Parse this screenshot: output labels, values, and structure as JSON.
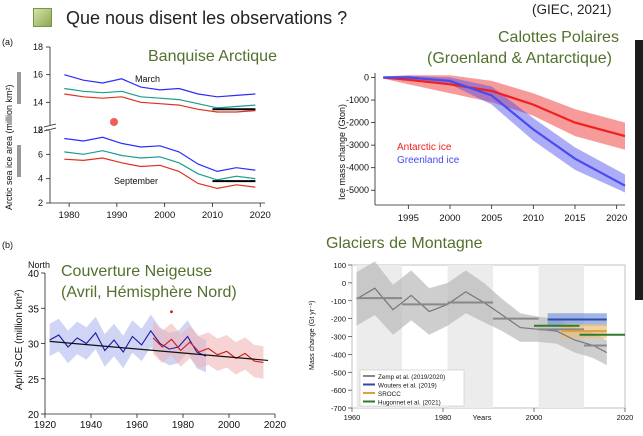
{
  "header": {
    "title": "Que nous disent les observations ?",
    "source": "(GIEC, 2021)",
    "colors": {
      "title_bullet": "#8aa852",
      "panel_titles": "#53702c"
    }
  },
  "panels": {
    "arctic": {
      "panel_label": "(a)",
      "title": "Banquise Arctique",
      "ylabel": "Arctic sea ice area (million km²)",
      "march_label": "March",
      "september_label": "September"
    },
    "ice_sheets": {
      "title_line1": "Calottes Polaires",
      "title_line2": "(Groenland & Antarctique)",
      "ylabel": "Ice mass change (Gton)",
      "legend_antarctic": "Antarctic ice",
      "legend_greenland": "Greenland ice"
    },
    "snow": {
      "panel_label": "(b)",
      "title_line1": "Couverture Neigeuse",
      "title_line2": "(Avril, Hémisphère Nord)",
      "corner_label": "North",
      "ylabel": "April SCE (million km²)"
    },
    "glaciers": {
      "title": "Glaciers de Montagne",
      "ylabel": "Mass change (Gt yr⁻¹)",
      "xlabel": "Years",
      "legend": [
        "Zemp et al. (2019/2020)",
        "Wouters et al. (2019)",
        "SROCC",
        "Hugonnet et al. (2021)"
      ]
    }
  },
  "chart_data": [
    {
      "id": "arctic",
      "type": "line",
      "xlim": [
        1976,
        2021
      ],
      "x_ticks": [
        1980,
        1990,
        2000,
        2010,
        2020
      ],
      "y_ticks_upper": [
        12,
        14,
        16,
        18
      ],
      "y_ticks_lower": [
        2,
        4,
        6,
        8
      ],
      "x": [
        1979,
        1983,
        1987,
        1991,
        1995,
        1999,
        2003,
        2007,
        2011,
        2015,
        2019
      ],
      "march_series": [
        {
          "color": "#2b2bff",
          "values": [
            16.0,
            15.6,
            15.4,
            15.7,
            15.1,
            14.9,
            15.0,
            14.6,
            14.4,
            14.5,
            14.6
          ]
        },
        {
          "color": "#1a9e8a",
          "values": [
            15.0,
            14.8,
            14.7,
            14.8,
            14.4,
            14.3,
            14.2,
            13.9,
            13.6,
            13.7,
            13.8
          ]
        },
        {
          "color": "#e03020",
          "values": [
            14.6,
            14.4,
            14.3,
            14.4,
            14.0,
            13.9,
            13.8,
            13.5,
            13.3,
            13.3,
            13.4
          ]
        }
      ],
      "september_series": [
        {
          "color": "#2b2bff",
          "values": [
            7.3,
            7.1,
            7.4,
            6.9,
            6.6,
            6.7,
            6.2,
            5.2,
            4.6,
            4.9,
            4.7
          ]
        },
        {
          "color": "#1a9e8a",
          "values": [
            6.2,
            6.0,
            6.3,
            5.9,
            5.7,
            5.8,
            5.3,
            4.4,
            3.9,
            4.2,
            4.0
          ]
        },
        {
          "color": "#e03020",
          "values": [
            5.6,
            5.5,
            5.7,
            5.3,
            5.0,
            5.1,
            4.6,
            3.6,
            3.2,
            3.5,
            3.3
          ]
        }
      ],
      "march_mean": {
        "x": [
          2010,
          2019
        ],
        "value": 13.5
      },
      "september_mean": {
        "x": [
          2010,
          2019
        ],
        "value": 3.8
      }
    },
    {
      "id": "ice_sheets",
      "type": "area",
      "xlim": [
        1991,
        2021
      ],
      "ylim": [
        -5300,
        200
      ],
      "x_ticks": [
        1995,
        2000,
        2005,
        2010,
        2015,
        2020
      ],
      "y_ticks": [
        0,
        -1000,
        -2000,
        -3000,
        -4000,
        -5000
      ],
      "series": [
        {
          "name": "Antarctic ice",
          "color": "#ee2020",
          "x": [
            1992,
            1995,
            2000,
            2005,
            2010,
            2015,
            2021
          ],
          "values": [
            0,
            -100,
            -300,
            -600,
            -1200,
            -2000,
            -2600
          ],
          "lower": [
            -50,
            -300,
            -700,
            -1100,
            -1700,
            -2600,
            -3200
          ],
          "upper": [
            50,
            100,
            100,
            -150,
            -700,
            -1400,
            -2000
          ]
        },
        {
          "name": "Greenland ice",
          "color": "#4a4aee",
          "x": [
            1992,
            1995,
            2000,
            2005,
            2010,
            2015,
            2021
          ],
          "values": [
            0,
            0,
            -150,
            -800,
            -2300,
            -3600,
            -4800
          ],
          "lower": [
            -50,
            -80,
            -300,
            -1200,
            -2800,
            -4100,
            -5100
          ],
          "upper": [
            50,
            80,
            0,
            -400,
            -1800,
            -3100,
            -4300
          ]
        }
      ]
    },
    {
      "id": "snow",
      "type": "line",
      "xlim": [
        1920,
        2020
      ],
      "ylim": [
        20,
        40
      ],
      "x_ticks": [
        1920,
        1940,
        1960,
        1980,
        2000,
        2020
      ],
      "y_ticks": [
        20,
        25,
        30,
        35,
        40
      ],
      "series": [
        {
          "color": "#1a1aa8",
          "band": "#a9b3ee",
          "x": [
            1922,
            1926,
            1930,
            1934,
            1938,
            1942,
            1946,
            1950,
            1954,
            1958,
            1962,
            1966,
            1970,
            1974,
            1978,
            1982,
            1986,
            1990
          ],
          "values": [
            30.5,
            31.2,
            29.5,
            30.8,
            30.0,
            31.5,
            29.0,
            30.5,
            28.8,
            31.0,
            29.8,
            31.8,
            30.0,
            29.2,
            29.5,
            31.0,
            28.8,
            28.2
          ]
        },
        {
          "color": "#cc1a1a",
          "band": "#f0b0b0",
          "x": [
            1967,
            1971,
            1975,
            1979,
            1983,
            1987,
            1991,
            1995,
            1999,
            2003,
            2007,
            2011,
            2015
          ],
          "values": [
            30.8,
            29.5,
            30.6,
            29.0,
            30.2,
            28.8,
            29.3,
            28.4,
            28.9,
            27.9,
            28.6,
            27.5,
            27.3
          ]
        }
      ],
      "trend": {
        "x": [
          1922,
          2017
        ],
        "values": [
          30.3,
          27.6
        ],
        "color": "#111111"
      },
      "extra_marker": {
        "x": 1975,
        "value": 34.5,
        "color": "#cc1a1a"
      }
    },
    {
      "id": "glaciers",
      "type": "line",
      "xlim": [
        1960,
        2020
      ],
      "ylim": [
        -700,
        100
      ],
      "x_ticks": [
        1960,
        1980,
        2000,
        2020
      ],
      "y_ticks": [
        100,
        0,
        -100,
        -200,
        -300,
        -400,
        -500,
        -600,
        -700
      ],
      "series": [
        {
          "name": "Zemp et al. (2019/2020)",
          "color": "#777777",
          "x": [
            1961,
            1965,
            1969,
            1973,
            1977,
            1981,
            1985,
            1989,
            1993,
            1997,
            2001,
            2005,
            2009,
            2013,
            2016
          ],
          "values": [
            -90,
            -30,
            -150,
            -70,
            -160,
            -120,
            -50,
            -110,
            -180,
            -250,
            -260,
            -270,
            -320,
            -350,
            -390
          ],
          "band": [
            150,
            150,
            140,
            140,
            130,
            120,
            120,
            110,
            90,
            80,
            70,
            70,
            70,
            70,
            70
          ]
        }
      ],
      "period_means": [
        {
          "name": "Zemp et al. (2019/2020)",
          "color": "#888888",
          "segments": [
            {
              "x": [
                1961,
                1971
              ],
              "value": -85
            },
            {
              "x": [
                1971,
                1981
              ],
              "value": -120
            },
            {
              "x": [
                1981,
                1991
              ],
              "value": -110
            },
            {
              "x": [
                1991,
                2001
              ],
              "value": -200
            },
            {
              "x": [
                2001,
                2011
              ],
              "value": -260
            },
            {
              "x": [
                2011,
                2016
              ],
              "value": -350
            }
          ]
        },
        {
          "name": "Wouters et al. (2019)",
          "color": "#2b4ea8",
          "segments": [
            {
              "x": [
                2003,
                2016
              ],
              "value": -205
            }
          ]
        },
        {
          "name": "SROCC",
          "color": "#e0a040",
          "segments": [
            {
              "x": [
                2006,
                2016
              ],
              "value": -270
            }
          ]
        },
        {
          "name": "Hugonnet et al. (2021)",
          "color": "#2e7b2e",
          "segments": [
            {
              "x": [
                2000,
                2010
              ],
              "value": -240
            },
            {
              "x": [
                2010,
                2020
              ],
              "value": -290
            }
          ]
        }
      ]
    }
  ]
}
